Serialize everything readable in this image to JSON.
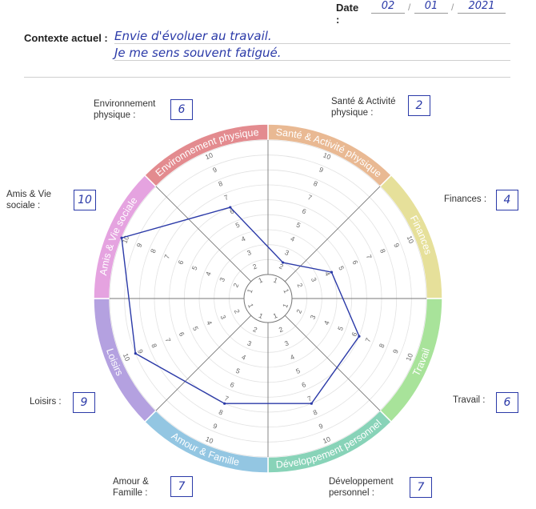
{
  "date": {
    "label": "Date :",
    "day": "02",
    "month": "01",
    "year": "2021"
  },
  "context": {
    "label": "Contexte actuel :",
    "lines": [
      "Envie d'évoluer au travail.",
      "Je me sens souvent fatigué."
    ]
  },
  "score_labels": {
    "environnement": "Environnement physique :",
    "sante": "Santé & Activité physique :",
    "finances": "Finances :",
    "travail": "Travail :",
    "developpement": "Développement personnel :",
    "amour": "Amour & Famille :",
    "loisirs": "Loisirs :",
    "amis": "Amis & Vie sociale :"
  },
  "chart_data": {
    "type": "radar",
    "scale": {
      "min": 1,
      "max": 10,
      "tick_labels": [
        "1",
        "2",
        "3",
        "4",
        "5",
        "6",
        "7",
        "8",
        "9",
        "10"
      ]
    },
    "categories": [
      {
        "key": "sante",
        "name": "Santé & Activité physique",
        "value": 2,
        "color": "#e9b993"
      },
      {
        "key": "finances",
        "name": "Finances",
        "value": 4,
        "color": "#e6e09a"
      },
      {
        "key": "travail",
        "name": "Travail",
        "value": 6,
        "color": "#a8e39a"
      },
      {
        "key": "developpement",
        "name": "Développement personnel",
        "value": 7,
        "color": "#88d3b8"
      },
      {
        "key": "amour",
        "name": "Amour & Famille",
        "value": 7,
        "color": "#93c6e2"
      },
      {
        "key": "loisirs",
        "name": "Loisirs",
        "value": 9,
        "color": "#b4a1e0"
      },
      {
        "key": "amis",
        "name": "Amis & Vie sociale",
        "value": 10,
        "color": "#e5a3e0"
      },
      {
        "key": "environnement",
        "name": "Environnement physique",
        "value": 6,
        "color": "#e38b8f"
      }
    ],
    "line_color": "#2b3aa8",
    "grid": true
  }
}
